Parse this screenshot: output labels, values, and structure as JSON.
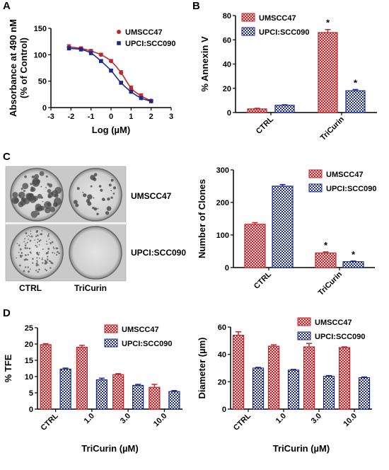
{
  "panels": {
    "a": "A",
    "b": "B",
    "c": "C",
    "d": "D"
  },
  "colors": {
    "umscc47": "#c0272d",
    "upci": "#1c2b8a",
    "axis": "#000000"
  },
  "photo": {
    "row_labels": [
      "UMSCC47",
      "UPCI:SCC090"
    ],
    "col_labels": [
      "CTRL",
      "TriCurin"
    ]
  },
  "chart_data": [
    {
      "id": "A",
      "type": "scatter",
      "xlabel": "Log (µM)",
      "ylabel": "Absorbance at 490 nM (% of Control)",
      "xlim": [
        -3,
        3
      ],
      "ylim": [
        0,
        150
      ],
      "xticks": [
        -3,
        -2,
        -1,
        0,
        1,
        2,
        3
      ],
      "yticks": [
        0,
        50,
        100,
        150
      ],
      "fit_curves": true,
      "legend_position": "top-right",
      "series": [
        {
          "name": "UMSCC47",
          "color": "#c0272d",
          "marker": "circle",
          "x": [
            -2.1,
            -1.5,
            -1.0,
            -0.5,
            0.0,
            0.5,
            1.0,
            1.5,
            2.0
          ],
          "y": [
            115,
            112,
            107,
            100,
            88,
            66,
            37,
            22,
            13
          ],
          "err": [
            4,
            3,
            3,
            3,
            3,
            4,
            4,
            4,
            2
          ]
        },
        {
          "name": "UPCI:SCC090",
          "color": "#1c2b8a",
          "marker": "square",
          "x": [
            -2.1,
            -1.5,
            -1.0,
            -0.5,
            0.0,
            0.5,
            1.0,
            1.5,
            2.0
          ],
          "y": [
            112,
            110,
            103,
            88,
            70,
            47,
            30,
            18,
            12
          ],
          "err": [
            3,
            3,
            3,
            2,
            2,
            2,
            2,
            2,
            2
          ]
        }
      ]
    },
    {
      "id": "B",
      "type": "bar",
      "ylabel": "% Annexin V",
      "categories": [
        "CTRL",
        "TriCurin"
      ],
      "ylim": [
        0,
        80
      ],
      "yticks": [
        0,
        20,
        40,
        60,
        80
      ],
      "legend_position": "top-left",
      "series": [
        {
          "name": "UMSCC47",
          "color": "#c0272d",
          "values": [
            3,
            66
          ],
          "err": [
            0.5,
            2.5
          ],
          "sig": [
            "",
            "*"
          ]
        },
        {
          "name": "UPCI:SCC090",
          "color": "#1c2b8a",
          "values": [
            6,
            18
          ],
          "err": [
            0.4,
            1.0
          ],
          "sig": [
            "",
            "*"
          ]
        }
      ]
    },
    {
      "id": "C",
      "type": "bar",
      "ylabel": "Number of Clones",
      "categories": [
        "CTRL",
        "TriCurin"
      ],
      "ylim": [
        0,
        300
      ],
      "yticks": [
        0,
        100,
        200,
        300
      ],
      "legend_position": "top-right",
      "series": [
        {
          "name": "UMSCC47",
          "color": "#c0272d",
          "values": [
            133,
            45
          ],
          "err": [
            5,
            3
          ],
          "sig": [
            "",
            "*"
          ]
        },
        {
          "name": "UPCI:SCC090",
          "color": "#1c2b8a",
          "values": [
            250,
            18
          ],
          "err": [
            5,
            2
          ],
          "sig": [
            "",
            "*"
          ]
        }
      ]
    },
    {
      "id": "D-left",
      "type": "bar",
      "xlabel": "TriCurin (µM)",
      "ylabel": "% TFE",
      "categories": [
        "CTRL",
        "1.0",
        "3.0",
        "10.0"
      ],
      "ylim": [
        0,
        25
      ],
      "yticks": [
        0,
        5,
        10,
        15,
        20,
        25
      ],
      "legend_position": "top-right",
      "series": [
        {
          "name": "UMSCC47",
          "color": "#c0272d",
          "values": [
            19.8,
            19.0,
            10.6,
            6.7
          ],
          "err": [
            0.3,
            0.6,
            0.3,
            0.9
          ]
        },
        {
          "name": "UPCI:SCC090",
          "color": "#1c2b8a",
          "values": [
            12.3,
            9.0,
            7.3,
            5.4
          ],
          "err": [
            0.3,
            0.5,
            0.3,
            0.3
          ]
        }
      ]
    },
    {
      "id": "D-right",
      "type": "bar",
      "xlabel": "TriCurin (µM)",
      "ylabel": "Diameter (µm)",
      "categories": [
        "CTRL",
        "1.0",
        "3.0",
        "10.0"
      ],
      "ylim": [
        0,
        60
      ],
      "yticks": [
        0,
        20,
        40,
        60
      ],
      "legend_position": "top-right",
      "series": [
        {
          "name": "UMSCC47",
          "color": "#c0272d",
          "values": [
            54,
            46,
            45.5,
            45
          ],
          "err": [
            2.5,
            1.0,
            2.5,
            0.5
          ]
        },
        {
          "name": "UPCI:SCC090",
          "color": "#1c2b8a",
          "values": [
            30,
            28.5,
            24,
            23
          ],
          "err": [
            0.5,
            0.5,
            0.5,
            0.5
          ]
        }
      ]
    }
  ]
}
